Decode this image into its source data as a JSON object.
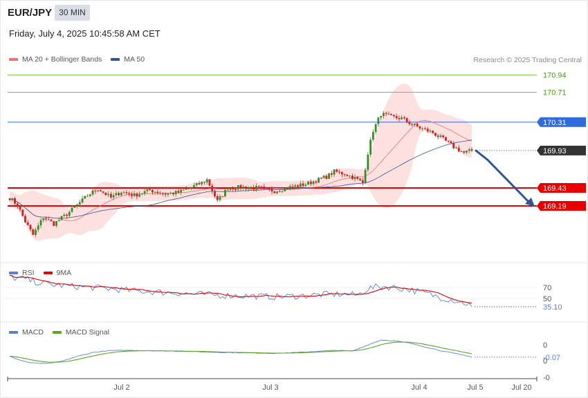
{
  "header": {
    "symbol": "EUR/JPY",
    "interval": "30 MIN",
    "datetime": "Friday, July 4, 2025 10:45:58 AM CET",
    "credit": "Research © 2025 Trading Central"
  },
  "colors": {
    "bollinger": "#f26f6f",
    "bollinger_fill": "#fde0e0",
    "ma50": "#2f5597",
    "resistance": "#7cbf3f",
    "pivot": "#2f6bdc",
    "support": "#e60000",
    "price_label": "#333333",
    "arrow": "#2f5597",
    "candle_up": "#3a8a2c",
    "candle_down": "#cc1f1f",
    "rsi": "#5b7fd6",
    "rsi_ma": "#e60000",
    "macd": "#5b7fd6",
    "macd_signal": "#5aa820"
  },
  "chart_data": [
    {
      "type": "candlestick",
      "legend": [
        {
          "name": "MA 20 + Bollinger Bands",
          "color": "#f26f6f"
        },
        {
          "name": "MA 50",
          "color": "#2f5597"
        }
      ],
      "legend_position": "top-left",
      "x_ticks": [
        "Jul 2",
        "Jul 3",
        "Jul 4",
        "Jul 5",
        "Jul 20"
      ],
      "ylim": [
        168.45,
        171.02
      ],
      "levels": [
        {
          "value": 170.94,
          "label": "170.94",
          "kind": "resistance"
        },
        {
          "value": 170.71,
          "label": "170.71",
          "kind": "resistance"
        },
        {
          "value": 170.31,
          "label": "170.31",
          "kind": "pivot"
        },
        {
          "value": 169.93,
          "label": "169.93",
          "kind": "last"
        },
        {
          "value": 169.43,
          "label": "169.43",
          "kind": "support"
        },
        {
          "value": 169.19,
          "label": "169.19",
          "kind": "support"
        }
      ],
      "forecast": {
        "from": 169.93,
        "mid": 169.86,
        "to": 169.19
      },
      "anchors": [
        [
          0,
          169.3
        ],
        [
          3,
          169.2
        ],
        [
          6,
          168.98
        ],
        [
          9,
          168.8
        ],
        [
          13,
          169.04
        ],
        [
          17,
          168.95
        ],
        [
          22,
          169.08
        ],
        [
          26,
          169.2
        ],
        [
          30,
          169.33
        ],
        [
          34,
          169.42
        ],
        [
          39,
          169.3
        ],
        [
          43,
          169.38
        ],
        [
          48,
          169.33
        ],
        [
          54,
          169.4
        ],
        [
          60,
          169.35
        ],
        [
          65,
          169.37
        ],
        [
          70,
          169.44
        ],
        [
          74,
          169.5
        ],
        [
          76,
          169.54
        ],
        [
          78,
          169.4
        ],
        [
          80,
          169.25
        ],
        [
          84,
          169.43
        ],
        [
          90,
          169.44
        ],
        [
          96,
          169.43
        ],
        [
          102,
          169.39
        ],
        [
          108,
          169.44
        ],
        [
          114,
          169.48
        ],
        [
          118,
          169.53
        ],
        [
          122,
          169.58
        ],
        [
          125,
          169.65
        ],
        [
          129,
          169.62
        ],
        [
          133,
          169.56
        ],
        [
          136,
          169.5
        ],
        [
          138,
          169.9
        ],
        [
          140,
          170.2
        ],
        [
          143,
          170.42
        ],
        [
          147,
          170.38
        ],
        [
          151,
          170.36
        ],
        [
          155,
          170.28
        ],
        [
          159,
          170.22
        ],
        [
          163,
          170.17
        ],
        [
          167,
          170.08
        ],
        [
          171,
          169.98
        ],
        [
          175,
          169.9
        ],
        [
          178,
          169.93
        ]
      ]
    },
    {
      "type": "line",
      "legend": [
        {
          "name": "RSI",
          "color": "#5b7fd6"
        },
        {
          "name": "9MA",
          "color": "#e60000"
        }
      ],
      "y_ticks": [
        70,
        50
      ],
      "last_value": 35.1,
      "last_label": "35.10",
      "anchors": [
        [
          0,
          88
        ],
        [
          5,
          86
        ],
        [
          10,
          80
        ],
        [
          16,
          75
        ],
        [
          24,
          72
        ],
        [
          32,
          70
        ],
        [
          40,
          67
        ],
        [
          48,
          64
        ],
        [
          56,
          62
        ],
        [
          64,
          60
        ],
        [
          72,
          58
        ],
        [
          80,
          56
        ],
        [
          88,
          55
        ],
        [
          96,
          54
        ],
        [
          104,
          53
        ],
        [
          112,
          55
        ],
        [
          120,
          57
        ],
        [
          128,
          58
        ],
        [
          134,
          56
        ],
        [
          138,
          68
        ],
        [
          143,
          72
        ],
        [
          148,
          70
        ],
        [
          154,
          66
        ],
        [
          160,
          60
        ],
        [
          166,
          52
        ],
        [
          172,
          46
        ],
        [
          178,
          38
        ]
      ]
    },
    {
      "type": "line",
      "legend": [
        {
          "name": "MACD",
          "color": "#5b7fd6"
        },
        {
          "name": "MACD Signal",
          "color": "#5aa820"
        }
      ],
      "y_ticks": [
        "0",
        "0",
        "-0"
      ],
      "last_value": -0.07,
      "last_label": "-0.07",
      "anchors": [
        [
          0,
          -0.05
        ],
        [
          4,
          -0.15
        ],
        [
          8,
          -0.22
        ],
        [
          14,
          -0.24
        ],
        [
          20,
          -0.18
        ],
        [
          26,
          -0.05
        ],
        [
          32,
          0.05
        ],
        [
          38,
          0.1
        ],
        [
          46,
          0.11
        ],
        [
          54,
          0.1
        ],
        [
          62,
          0.09
        ],
        [
          70,
          0.08
        ],
        [
          78,
          0.06
        ],
        [
          86,
          0.05
        ],
        [
          94,
          0.04
        ],
        [
          102,
          0.03
        ],
        [
          110,
          0.05
        ],
        [
          118,
          0.08
        ],
        [
          126,
          0.11
        ],
        [
          132,
          0.09
        ],
        [
          138,
          0.25
        ],
        [
          143,
          0.38
        ],
        [
          148,
          0.36
        ],
        [
          154,
          0.3
        ],
        [
          160,
          0.2
        ],
        [
          166,
          0.1
        ],
        [
          172,
          0.02
        ],
        [
          178,
          -0.06
        ]
      ]
    }
  ]
}
